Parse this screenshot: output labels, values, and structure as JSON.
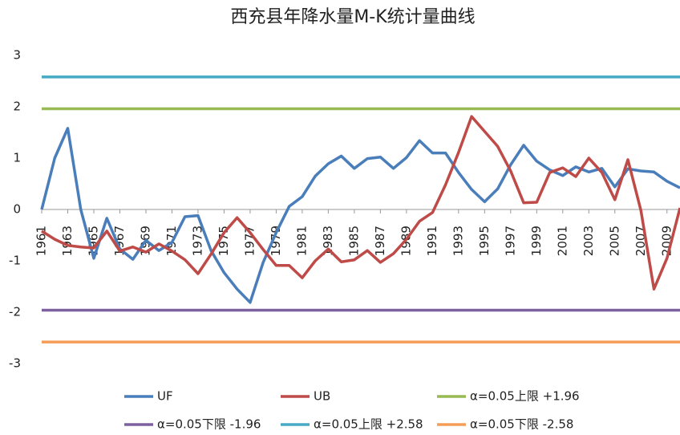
{
  "chart_data": {
    "type": "line",
    "title": "西充县年降水量M-K统计量曲线",
    "x": [
      1961,
      1962,
      1963,
      1964,
      1965,
      1966,
      1967,
      1968,
      1969,
      1970,
      1971,
      1972,
      1973,
      1974,
      1975,
      1976,
      1977,
      1978,
      1979,
      1980,
      1981,
      1982,
      1983,
      1984,
      1985,
      1986,
      1987,
      1988,
      1989,
      1990,
      1991,
      1992,
      1993,
      1994,
      1995,
      1996,
      1997,
      1998,
      1999,
      2000,
      2001,
      2002,
      2003,
      2004,
      2005,
      2006,
      2007,
      2008,
      2009,
      2010
    ],
    "xlim": [
      1961,
      2010
    ],
    "xticks": [
      1961,
      1963,
      1965,
      1967,
      1969,
      1971,
      1973,
      1975,
      1977,
      1979,
      1981,
      1983,
      1985,
      1987,
      1989,
      1991,
      1993,
      1995,
      1997,
      1999,
      2001,
      2003,
      2005,
      2007,
      2009
    ],
    "ylim": [
      -3,
      3
    ],
    "yticks": [
      -3,
      -2,
      -1,
      0,
      1,
      2,
      3
    ],
    "series": [
      {
        "name": "UF",
        "color": "#4a7ebb",
        "values": [
          0,
          1.0,
          1.58,
          0.0,
          -0.95,
          -0.17,
          -0.77,
          -0.97,
          -0.6,
          -0.8,
          -0.64,
          -0.14,
          -0.12,
          -0.8,
          -1.23,
          -1.55,
          -1.81,
          -1.03,
          -0.45,
          0.06,
          0.25,
          0.65,
          0.89,
          1.04,
          0.8,
          0.99,
          1.02,
          0.8,
          1.01,
          1.34,
          1.1,
          1.1,
          0.72,
          0.39,
          0.15,
          0.4,
          0.87,
          1.25,
          0.94,
          0.77,
          0.66,
          0.83,
          0.73,
          0.8,
          0.44,
          0.79,
          0.75,
          0.73,
          0.55,
          0.42
        ]
      },
      {
        "name": "UB",
        "color": "#be4b48",
        "values": [
          -0.42,
          -0.58,
          -0.7,
          -0.73,
          -0.75,
          -0.42,
          -0.81,
          -0.73,
          -0.83,
          -0.67,
          -0.81,
          -0.98,
          -1.25,
          -0.87,
          -0.45,
          -0.16,
          -0.45,
          -0.78,
          -1.09,
          -1.09,
          -1.33,
          -1.0,
          -0.77,
          -1.02,
          -0.98,
          -0.8,
          -1.03,
          -0.86,
          -0.58,
          -0.23,
          -0.06,
          0.48,
          1.11,
          1.81,
          1.52,
          1.23,
          0.75,
          0.13,
          0.14,
          0.72,
          0.81,
          0.64,
          1.0,
          0.72,
          0.19,
          0.97,
          -0.02,
          -1.55,
          -0.95,
          0.03
        ]
      }
    ],
    "reference_lines": [
      {
        "name": "α=0.05上限 +1.96",
        "color": "#98b954",
        "value": 1.96
      },
      {
        "name": "α=0.05下限 -1.96",
        "color": "#7d60a0",
        "value": -1.96
      },
      {
        "name": "α=0.05上限 +2.58",
        "color": "#46aac5",
        "value": 2.58
      },
      {
        "name": "α=0.05下限 -2.58",
        "color": "#f59d56",
        "value": -2.58
      }
    ]
  }
}
